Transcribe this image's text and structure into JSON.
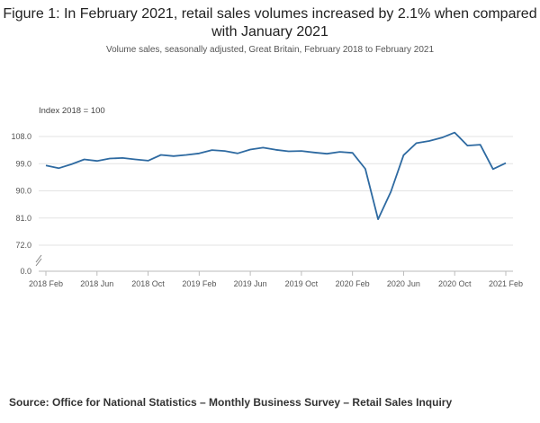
{
  "title": "Figure 1: In February 2021, retail sales volumes increased by 2.1% when compared with January 2021",
  "subtitle": "Volume sales, seasonally adjusted, Great Britain, February 2018 to February 2021",
  "source": "Source: Office for National Statistics – Monthly Business Survey – Retail Sales Inquiry",
  "chart_data": {
    "type": "line",
    "ylabel": "Index 2018 = 100",
    "xlabel": "",
    "ylim": [
      0,
      108
    ],
    "axis_break": true,
    "grid": true,
    "y_ticks": [
      "0.0",
      "72.0",
      "81.0",
      "90.0",
      "99.0",
      "108.0"
    ],
    "x_tick_labels": [
      "2018 Feb",
      "2018 Jun",
      "2018 Oct",
      "2019 Feb",
      "2019 Jun",
      "2019 Oct",
      "2020 Feb",
      "2020 Jun",
      "2020 Oct",
      "2021 Feb"
    ],
    "x": [
      "2018 Feb",
      "2018 Mar",
      "2018 Apr",
      "2018 May",
      "2018 Jun",
      "2018 Jul",
      "2018 Aug",
      "2018 Sep",
      "2018 Oct",
      "2018 Nov",
      "2018 Dec",
      "2019 Jan",
      "2019 Feb",
      "2019 Mar",
      "2019 Apr",
      "2019 May",
      "2019 Jun",
      "2019 Jul",
      "2019 Aug",
      "2019 Sep",
      "2019 Oct",
      "2019 Nov",
      "2019 Dec",
      "2020 Jan",
      "2020 Feb",
      "2020 Mar",
      "2020 Apr",
      "2020 May",
      "2020 Jun",
      "2020 Jul",
      "2020 Aug",
      "2020 Sep",
      "2020 Oct",
      "2020 Nov",
      "2020 Dec",
      "2021 Jan",
      "2021 Feb"
    ],
    "series": [
      {
        "color": "#2e6aa1",
        "values": [
          98.4,
          97.5,
          98.8,
          100.4,
          99.9,
          100.7,
          100.9,
          100.4,
          100.0,
          101.9,
          101.5,
          101.9,
          102.4,
          103.5,
          103.2,
          102.4,
          103.7,
          104.3,
          103.6,
          103.1,
          103.2,
          102.7,
          102.3,
          102.9,
          102.6,
          97.3,
          80.6,
          89.7,
          101.8,
          105.8,
          106.5,
          107.6,
          109.3,
          105.0,
          105.3,
          97.2,
          99.2
        ]
      }
    ]
  }
}
